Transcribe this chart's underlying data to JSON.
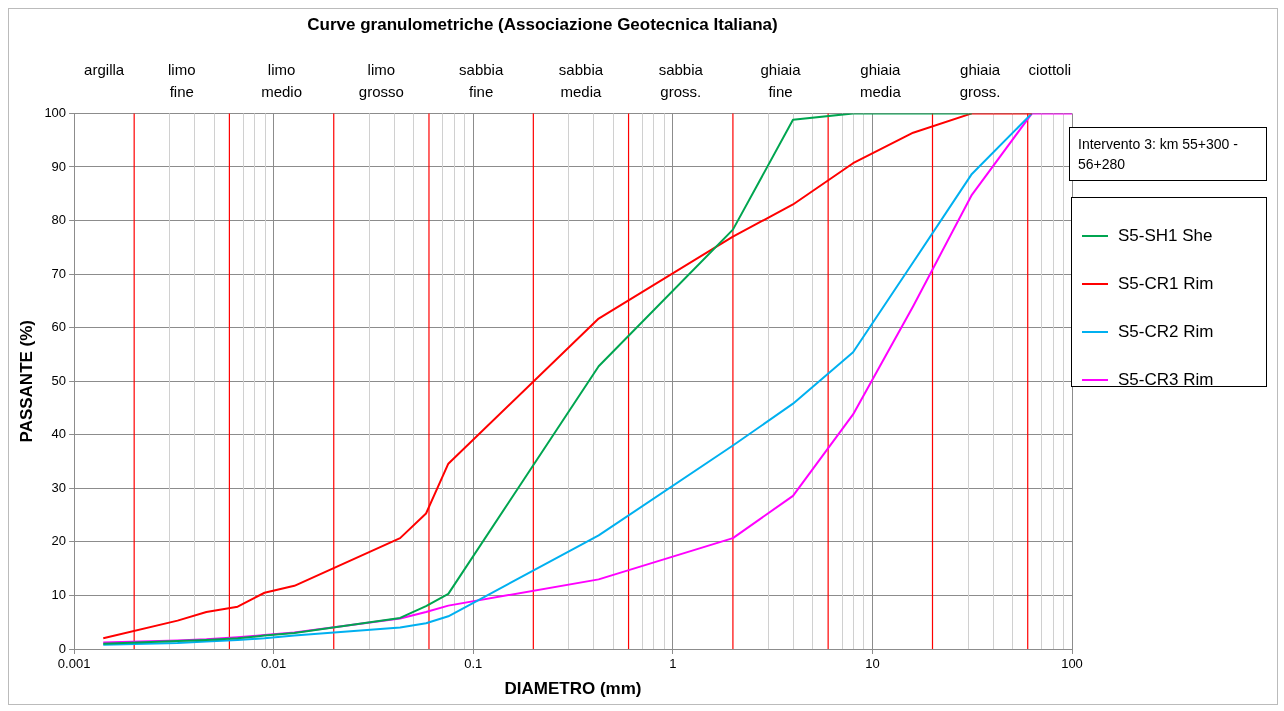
{
  "chart_data": {
    "type": "line",
    "title": "Curve granulometriche (Associazione Geotecnica Italiana)",
    "xlabel": "DIAMETRO (mm)",
    "ylabel": "PASSANTE (%)",
    "log": "x",
    "grid": true,
    "legend": "right",
    "marker": "none",
    "line_style": "solid",
    "xlim": [
      0.001,
      100
    ],
    "xticks": [
      0.001,
      0.01,
      0.1,
      1,
      10,
      100
    ],
    "ylim": [
      0,
      100
    ],
    "yticks": [
      0,
      10,
      20,
      30,
      40,
      50,
      60,
      70,
      80,
      90,
      100
    ],
    "annotations": [
      "argilla",
      "limo fine",
      "limo medio",
      "limo grosso",
      "sabbia fine",
      "sabbia media",
      "sabbia gross.",
      "ghiaia fine",
      "ghiaia media",
      "ghiaia gross.",
      "ciottoli",
      "Intervento 3: km 55+300 - 56+280"
    ],
    "ref_lines": [
      {
        "axis": "x",
        "value": 0.002,
        "color": "#ff0000"
      },
      {
        "axis": "x",
        "value": 0.006,
        "color": "#ff0000"
      },
      {
        "axis": "x",
        "value": 0.02,
        "color": "#ff0000"
      },
      {
        "axis": "x",
        "value": 0.06,
        "color": "#ff0000"
      },
      {
        "axis": "x",
        "value": 0.2,
        "color": "#ff0000"
      },
      {
        "axis": "x",
        "value": 0.6,
        "color": "#ff0000"
      },
      {
        "axis": "x",
        "value": 2,
        "color": "#ff0000"
      },
      {
        "axis": "x",
        "value": 6,
        "color": "#ff0000"
      },
      {
        "axis": "x",
        "value": 20,
        "color": "#ff0000"
      },
      {
        "axis": "x",
        "value": 60,
        "color": "#ff0000"
      }
    ],
    "series": [
      {
        "name": "S5-SH1 She",
        "color": "#00a550",
        "x": [
          0.0014,
          0.0033,
          0.0046,
          0.0066,
          0.009,
          0.0127,
          0.043,
          0.058,
          0.075,
          0.425,
          2,
          4,
          8,
          16,
          31.5
        ],
        "values": [
          1.0,
          1.5,
          1.7,
          2.0,
          2.5,
          3.0,
          5.8,
          8.0,
          10.3,
          52.8,
          78.3,
          98.8,
          100,
          100,
          100
        ]
      },
      {
        "name": "S5-CR1 Rim",
        "color": "#ff0000",
        "x": [
          0.0014,
          0.0033,
          0.0046,
          0.0066,
          0.009,
          0.0127,
          0.043,
          0.058,
          0.075,
          0.425,
          2,
          4,
          8,
          16,
          31.5,
          63
        ],
        "values": [
          2.0,
          5.3,
          6.9,
          7.9,
          10.5,
          11.8,
          20.7,
          25.3,
          34.6,
          61.7,
          77.0,
          83.0,
          90.7,
          96.4,
          100,
          100
        ]
      },
      {
        "name": "S5-CR2 Rim",
        "color": "#00b0f0",
        "x": [
          0.0014,
          0.0033,
          0.0046,
          0.0066,
          0.009,
          0.0127,
          0.043,
          0.058,
          0.075,
          0.425,
          2,
          4,
          8,
          16,
          31.5,
          63
        ],
        "values": [
          0.8,
          1.1,
          1.4,
          1.7,
          2.0,
          2.5,
          4.0,
          4.8,
          6.1,
          21.2,
          38.0,
          45.8,
          55.4,
          72.2,
          88.7,
          100
        ]
      },
      {
        "name": "S5-CR3 Rim",
        "color": "#ff00ff",
        "x": [
          0.0014,
          0.0033,
          0.0046,
          0.0066,
          0.009,
          0.0127,
          0.043,
          0.058,
          0.075,
          0.425,
          2,
          4,
          8,
          16,
          31.5,
          63,
          100
        ],
        "values": [
          1.2,
          1.6,
          1.8,
          2.2,
          2.6,
          3.1,
          5.7,
          6.9,
          8.1,
          13.0,
          20.7,
          28.6,
          43.8,
          64.0,
          84.8,
          100,
          100
        ]
      }
    ]
  }
}
